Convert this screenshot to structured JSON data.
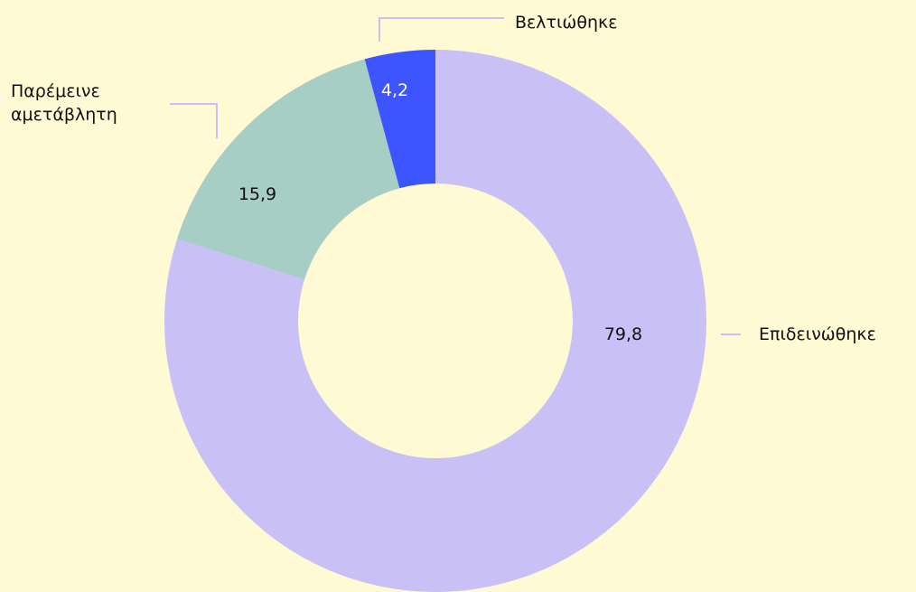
{
  "chart_data": {
    "type": "donut",
    "categories": [
      "Επιδεινώθηκε",
      "Παρέμεινε αμετάβλητη",
      "Βελτιώθηκε"
    ],
    "values": [
      79.8,
      15.9,
      4.2
    ],
    "value_labels": [
      "79,8",
      "15,9",
      "4,2"
    ],
    "colors": [
      "#c9c0f5",
      "#a6cec4",
      "#3d55ff"
    ]
  }
}
